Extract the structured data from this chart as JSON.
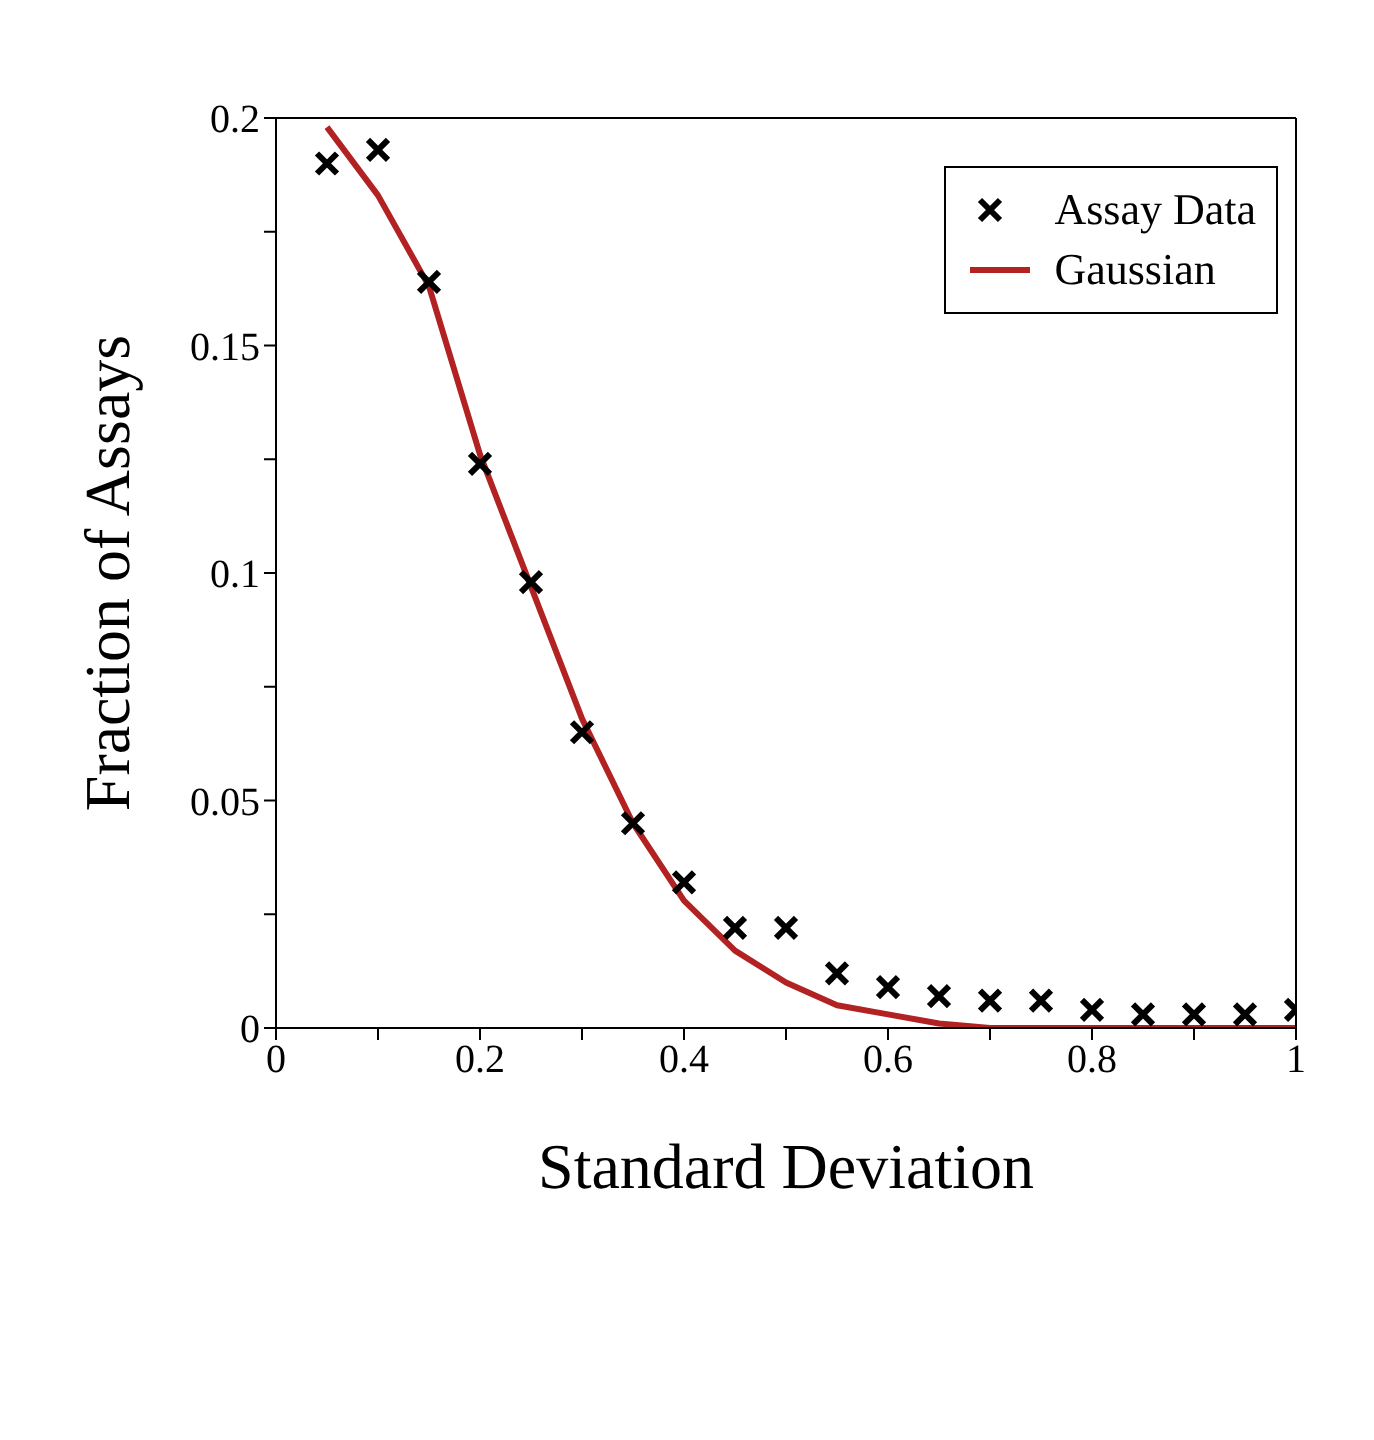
{
  "chart_data": {
    "type": "scatter",
    "xlabel": "Standard Deviation",
    "ylabel": "Fraction of Assays",
    "xlim": [
      0,
      1
    ],
    "ylim": [
      0,
      0.2
    ],
    "xticks": [
      0,
      {
        "value": 0.1,
        "label": null
      },
      0.2,
      {
        "value": 0.3,
        "label": null
      },
      0.4,
      {
        "value": 0.5,
        "label": null
      },
      0.6,
      {
        "value": 0.7,
        "label": null
      },
      0.8,
      {
        "value": 0.9,
        "label": null
      },
      1
    ],
    "yticks": [
      0,
      {
        "value": 0.025,
        "label": null
      },
      0.05,
      {
        "value": 0.075,
        "label": null
      },
      0.1,
      {
        "value": 0.125,
        "label": null
      },
      0.15,
      {
        "value": 0.175,
        "label": null
      },
      0.2
    ],
    "legend": "top right",
    "series": [
      {
        "name": "Assay Data",
        "marker": "cross",
        "color": "#000000",
        "x": [
          0.05,
          0.1,
          0.15,
          0.2,
          0.25,
          0.3,
          0.35,
          0.4,
          0.45,
          0.5,
          0.55,
          0.6,
          0.65,
          0.7,
          0.75,
          0.8,
          0.85,
          0.9,
          0.95,
          1.0
        ],
        "values": [
          0.19,
          0.193,
          0.164,
          0.124,
          0.098,
          0.065,
          0.045,
          0.032,
          0.022,
          0.022,
          0.012,
          0.009,
          0.007,
          0.006,
          0.006,
          0.004,
          0.003,
          0.003,
          0.003,
          0.004
        ]
      },
      {
        "name": "Gaussian",
        "type": "line",
        "marker": "none",
        "line_style": "solid",
        "color": "#b22222",
        "x": [
          0.05,
          0.1,
          0.15,
          0.2,
          0.25,
          0.3,
          0.35,
          0.4,
          0.45,
          0.5,
          0.55,
          0.6,
          0.65,
          0.7,
          0.75,
          0.8,
          0.85,
          0.9,
          0.95,
          1.0
        ],
        "values": [
          0.198,
          0.183,
          0.163,
          0.126,
          0.097,
          0.068,
          0.045,
          0.028,
          0.017,
          0.01,
          0.005,
          0.003,
          0.001,
          0,
          0,
          0,
          0,
          0,
          0,
          0
        ]
      }
    ]
  }
}
